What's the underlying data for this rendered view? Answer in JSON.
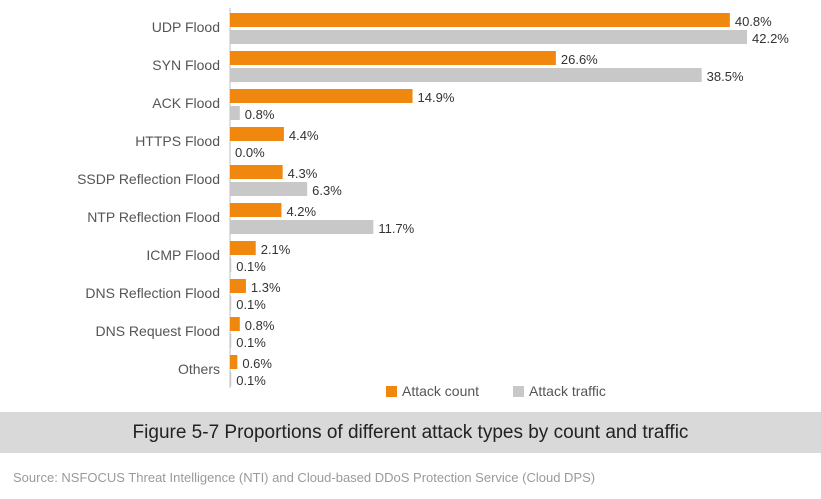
{
  "chart_data": {
    "type": "bar",
    "orientation": "horizontal",
    "categories": [
      "UDP Flood",
      "SYN Flood",
      "ACK Flood",
      "HTTPS Flood",
      "SSDP Reflection Flood",
      "NTP Reflection Flood",
      "ICMP Flood",
      "DNS Reflection Flood",
      "DNS Request Flood",
      "Others"
    ],
    "series": [
      {
        "name": "Attack count",
        "color": "#f0870f",
        "values": [
          40.8,
          26.6,
          14.9,
          4.4,
          4.3,
          4.2,
          2.1,
          1.3,
          0.8,
          0.6
        ]
      },
      {
        "name": "Attack traffic",
        "color": "#c8c8c8",
        "values": [
          42.2,
          38.5,
          0.8,
          0.0,
          6.3,
          11.7,
          0.1,
          0.1,
          0.1,
          0.1
        ]
      }
    ],
    "value_suffix": "%",
    "xlim": [
      0,
      42.2
    ],
    "legend_position": "bottom-right",
    "grid": false
  },
  "caption": "Figure 5-7 Proportions of different attack types by count and traffic",
  "source": "Source: NSFOCUS Threat Intelligence (NTI) and Cloud-based DDoS Protection Service (Cloud DPS)"
}
